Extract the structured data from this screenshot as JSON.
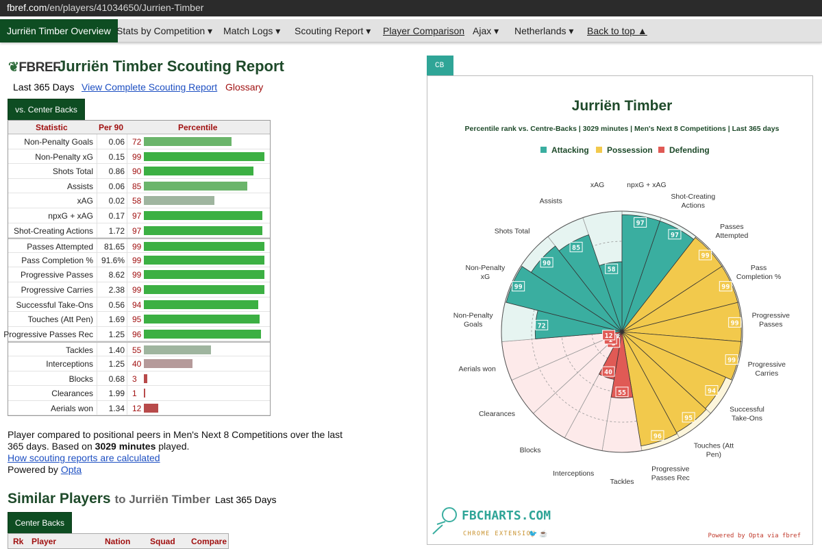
{
  "browser": {
    "url_domain": "fbref.com",
    "url_path": "/en/players/41034650/Jurrien-Timber"
  },
  "nav": {
    "overview": "Jurriën Timber Overview",
    "stats_by_competition": "Stats by Competition ▾",
    "match_logs": "Match Logs ▾",
    "scouting_report": "Scouting Report ▾",
    "player_comparison": "Player Comparison",
    "ajax": "Ajax ▾",
    "netherlands": "Netherlands ▾",
    "back_to_top": "Back to top ▲"
  },
  "header": {
    "logo_text": "FBREF",
    "title": "Jurriën Timber Scouting Report",
    "period": "Last 365 Days",
    "view_complete": "View Complete Scouting Report",
    "glossary": "Glossary"
  },
  "scouting": {
    "tab": "vs. Center Backs",
    "columns": {
      "statistic": "Statistic",
      "per90": "Per 90",
      "percentile": "Percentile"
    },
    "rows": [
      {
        "stat": "Non-Penalty Goals",
        "per90": "0.06",
        "pct": 72
      },
      {
        "stat": "Non-Penalty xG",
        "per90": "0.15",
        "pct": 99
      },
      {
        "stat": "Shots Total",
        "per90": "0.86",
        "pct": 90
      },
      {
        "stat": "Assists",
        "per90": "0.06",
        "pct": 85
      },
      {
        "stat": "xAG",
        "per90": "0.02",
        "pct": 58
      },
      {
        "stat": "npxG + xAG",
        "per90": "0.17",
        "pct": 97
      },
      {
        "stat": "Shot-Creating Actions",
        "per90": "1.72",
        "pct": 97
      },
      {
        "stat": "Passes Attempted",
        "per90": "81.65",
        "pct": 99
      },
      {
        "stat": "Pass Completion %",
        "per90": "91.6%",
        "pct": 99
      },
      {
        "stat": "Progressive Passes",
        "per90": "8.62",
        "pct": 99
      },
      {
        "stat": "Progressive Carries",
        "per90": "2.38",
        "pct": 99
      },
      {
        "stat": "Successful Take-Ons",
        "per90": "0.56",
        "pct": 94
      },
      {
        "stat": "Touches (Att Pen)",
        "per90": "1.69",
        "pct": 95
      },
      {
        "stat": "Progressive Passes Rec",
        "per90": "1.25",
        "pct": 96
      },
      {
        "stat": "Tackles",
        "per90": "1.40",
        "pct": 55
      },
      {
        "stat": "Interceptions",
        "per90": "1.25",
        "pct": 40
      },
      {
        "stat": "Blocks",
        "per90": "0.68",
        "pct": 3
      },
      {
        "stat": "Clearances",
        "per90": "1.99",
        "pct": 1
      },
      {
        "stat": "Aerials won",
        "per90": "1.34",
        "pct": 12
      }
    ]
  },
  "info": {
    "line1": "Player compared to positional peers in Men's Next 8 Competitions over the last",
    "line2_prefix": "365 days. Based on",
    "minutes": "3029 minutes",
    "line2_suffix": "played.",
    "how_link": "How scouting reports are calculated",
    "powered_prefix": "Powered by",
    "opta": "Opta"
  },
  "similar": {
    "title": "Similar Players",
    "subtitle": "to Jurriën Timber",
    "period": "Last 365 Days",
    "tab": "Center Backs",
    "columns": [
      "Rk",
      "Player",
      "Nation",
      "Squad",
      "Compare"
    ]
  },
  "chart_panel": {
    "tab": "CB",
    "footer_brand": "FBCHARTS.COM",
    "footer_sub": "CHROME EXTENSION",
    "powered": "Powered by Opta via fbref"
  },
  "colors": {
    "attacking": "#3aaea0",
    "possession": "#f2c94c",
    "defending": "#e05a55",
    "fbref_green": "#0e4d22",
    "bar_high": "#3cb043",
    "bar_mid": "#6bb56b",
    "bar_avg": "#9fb59f",
    "bar_below": "#b59a9a",
    "bar_low": "#b84a4a"
  },
  "chart_data": {
    "type": "polar-bar",
    "title": "Jurriën Timber",
    "subtitle": "Percentile rank vs. Centre-Backs | 3029 minutes | Men's Next 8 Competitions | Last 365 days",
    "legend": [
      {
        "name": "Attacking",
        "color": "#3aaea0"
      },
      {
        "name": "Possession",
        "color": "#f2c94c"
      },
      {
        "name": "Defending",
        "color": "#e05a55"
      }
    ],
    "rmax": 100,
    "categories": [
      {
        "label": "npxG + xAG",
        "value": 97,
        "group": "Attacking"
      },
      {
        "label": "Shot-Creating Actions",
        "value": 97,
        "group": "Attacking"
      },
      {
        "label": "Passes Attempted",
        "value": 99,
        "group": "Possession"
      },
      {
        "label": "Pass Completion %",
        "value": 99,
        "group": "Possession"
      },
      {
        "label": "Progressive Passes",
        "value": 99,
        "group": "Possession"
      },
      {
        "label": "Progressive Carries",
        "value": 99,
        "group": "Possession"
      },
      {
        "label": "Successful Take-Ons",
        "value": 94,
        "group": "Possession"
      },
      {
        "label": "Touches (Att Pen)",
        "value": 95,
        "group": "Possession"
      },
      {
        "label": "Progressive Passes Rec",
        "value": 96,
        "group": "Possession"
      },
      {
        "label": "Tackles",
        "value": 55,
        "group": "Defending"
      },
      {
        "label": "Interceptions",
        "value": 40,
        "group": "Defending"
      },
      {
        "label": "Blocks",
        "value": 3,
        "group": "Defending"
      },
      {
        "label": "Clearances",
        "value": 1,
        "group": "Defending"
      },
      {
        "label": "Aerials won",
        "value": 12,
        "group": "Defending"
      },
      {
        "label": "Non-Penalty Goals",
        "value": 72,
        "group": "Attacking"
      },
      {
        "label": "Non-Penalty xG",
        "value": 99,
        "group": "Attacking"
      },
      {
        "label": "Shots Total",
        "value": 90,
        "group": "Attacking"
      },
      {
        "label": "Assists",
        "value": 85,
        "group": "Attacking"
      },
      {
        "label": "xAG",
        "value": 58,
        "group": "Attacking"
      }
    ]
  }
}
